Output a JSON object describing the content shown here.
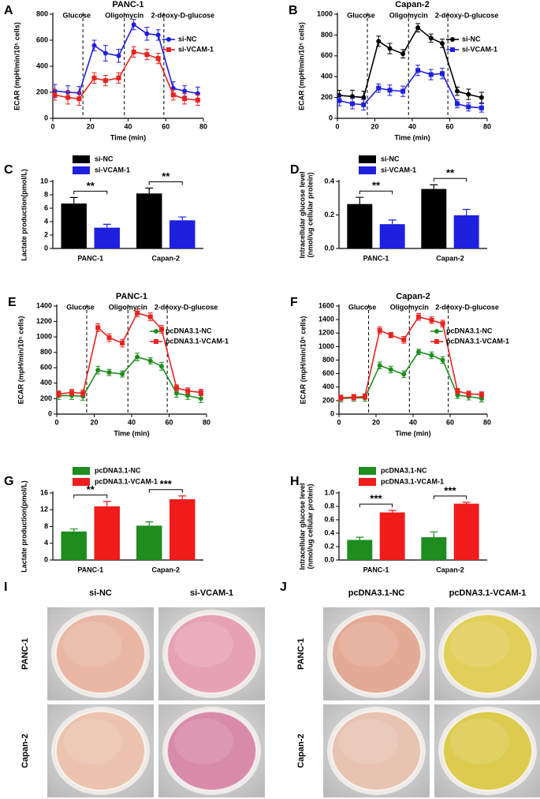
{
  "chart_data": [
    {
      "type": "line",
      "panel_label": "A",
      "title": "PANC-1",
      "xlabel": "Time (min)",
      "ylabel": "ECAR (mpH/min/10⁵ cells)",
      "markers": [
        {
          "x": 16,
          "label": "Glucose"
        },
        {
          "x": 38,
          "label": "Oligomycin"
        },
        {
          "x": 59,
          "label": "2-deoxy-D-glucose"
        }
      ],
      "x": [
        1,
        8,
        14,
        22,
        28,
        35,
        43,
        50,
        56,
        64,
        70,
        77
      ],
      "series": [
        {
          "name": "si-NC",
          "color": "#1f1fe0",
          "values": [
            210,
            200,
            195,
            560,
            500,
            480,
            720,
            650,
            640,
            230,
            210,
            190
          ],
          "errors": [
            50,
            50,
            50,
            40,
            60,
            50,
            40,
            50,
            40,
            50,
            40,
            50
          ]
        },
        {
          "name": "si-VCAM-1",
          "color": "#e8231f",
          "values": [
            180,
            160,
            150,
            310,
            290,
            310,
            510,
            490,
            460,
            180,
            150,
            140
          ],
          "errors": [
            40,
            50,
            50,
            40,
            40,
            40,
            40,
            40,
            40,
            40,
            40,
            40
          ]
        }
      ],
      "xlim": [
        0,
        80
      ],
      "xticks": [
        0,
        20,
        40,
        60,
        80
      ],
      "ylim": [
        0,
        800
      ],
      "yticks": [
        0,
        200,
        400,
        600,
        800
      ]
    },
    {
      "type": "line",
      "panel_label": "B",
      "title": "Capan-2",
      "xlabel": "Time (min)",
      "ylabel": "ECAR (mpH/min/10⁵ cells)",
      "markers": [
        {
          "x": 16,
          "label": "Glucose"
        },
        {
          "x": 38,
          "label": "Oligomycin"
        },
        {
          "x": 59,
          "label": "2-deoxy-D-glucose"
        }
      ],
      "x": [
        1,
        8,
        14,
        22,
        28,
        35,
        43,
        50,
        56,
        64,
        70,
        77
      ],
      "series": [
        {
          "name": "si-NC",
          "color": "#000000",
          "values": [
            220,
            210,
            200,
            740,
            670,
            620,
            870,
            770,
            720,
            260,
            230,
            200
          ],
          "errors": [
            50,
            60,
            60,
            50,
            50,
            40,
            40,
            40,
            40,
            40,
            50,
            50
          ]
        },
        {
          "name": "si-VCAM-1",
          "color": "#1f1fe0",
          "values": [
            170,
            140,
            130,
            290,
            270,
            260,
            460,
            420,
            430,
            140,
            110,
            100
          ],
          "errors": [
            50,
            50,
            50,
            40,
            50,
            50,
            50,
            50,
            50,
            40,
            40,
            40
          ]
        }
      ],
      "xlim": [
        0,
        80
      ],
      "xticks": [
        0,
        20,
        40,
        60,
        80
      ],
      "ylim": [
        0,
        1000
      ],
      "yticks": [
        0,
        200,
        400,
        600,
        800,
        1000
      ]
    },
    {
      "type": "bar",
      "panel_label": "C",
      "ylabel": "Lactate production(pmol/L)",
      "categories": [
        "PANC-1",
        "Capan-2"
      ],
      "series": [
        {
          "name": "si-NC",
          "color": "#000000",
          "values": [
            6.7,
            8.2
          ],
          "errors": [
            0.9,
            0.8
          ]
        },
        {
          "name": "si-VCAM-1",
          "color": "#1f1fe0",
          "values": [
            3.1,
            4.2
          ],
          "errors": [
            0.5,
            0.5
          ]
        }
      ],
      "significance": [
        "**",
        "**"
      ],
      "ylim": [
        0,
        10
      ],
      "yticks": [
        0,
        2,
        4,
        6,
        8,
        10
      ]
    },
    {
      "type": "bar",
      "panel_label": "D",
      "ylabel": [
        "Intracellular glucose level",
        "(nmol/ug cellular protein)"
      ],
      "categories": [
        "PANC-1",
        "Capan-2"
      ],
      "series": [
        {
          "name": "si-NC",
          "color": "#000000",
          "values": [
            0.265,
            0.355
          ],
          "errors": [
            0.04,
            0.025
          ]
        },
        {
          "name": "si-VCAM-1",
          "color": "#1f1fe0",
          "values": [
            0.145,
            0.198
          ],
          "errors": [
            0.025,
            0.035
          ]
        }
      ],
      "significance": [
        "**",
        "**"
      ],
      "ylim": [
        0,
        0.4
      ],
      "yticks": [
        {
          "value": 0,
          "label": "0.0"
        },
        0.2,
        0.4
      ]
    },
    {
      "type": "line",
      "panel_label": "E",
      "title": "PANC-1",
      "xlabel": "Time (min)",
      "ylabel": "ECAR (mpH/min/10⁵ cells)",
      "markers": [
        {
          "x": 16,
          "label": "Glucose"
        },
        {
          "x": 38,
          "label": "Oligomycin"
        },
        {
          "x": 59,
          "label": "2-deoxy-D-glucose"
        }
      ],
      "x": [
        1,
        8,
        14,
        22,
        28,
        35,
        43,
        50,
        56,
        64,
        70,
        77
      ],
      "series": [
        {
          "name": "pcDNA3.1-NC",
          "color": "#1e8c1e",
          "values": [
            240,
            240,
            230,
            570,
            540,
            520,
            740,
            690,
            620,
            270,
            240,
            200
          ],
          "errors": [
            50,
            50,
            50,
            50,
            40,
            40,
            50,
            40,
            50,
            50,
            50,
            50
          ]
        },
        {
          "name": "pcDNA3.1-VCAM-1",
          "color": "#e8231f",
          "values": [
            260,
            280,
            270,
            1120,
            990,
            920,
            1310,
            1260,
            1100,
            340,
            300,
            280
          ],
          "errors": [
            40,
            40,
            40,
            50,
            50,
            50,
            50,
            50,
            50,
            40,
            40,
            40
          ]
        }
      ],
      "xlim": [
        0,
        80
      ],
      "xticks": [
        0,
        20,
        40,
        60,
        80
      ],
      "ylim": [
        0,
        1400
      ],
      "yticks": [
        0,
        200,
        400,
        600,
        800,
        1000,
        1200,
        1400
      ]
    },
    {
      "type": "line",
      "panel_label": "F",
      "title": "Capan-2",
      "xlabel": "Time (min)",
      "ylabel": "ECAR (mpH/min/10⁵ cells)",
      "markers": [
        {
          "x": 16,
          "label": "Glucose"
        },
        {
          "x": 38,
          "label": "Oligomycin"
        },
        {
          "x": 59,
          "label": "2-deoxy-D-glucose"
        }
      ],
      "x": [
        1,
        8,
        14,
        22,
        28,
        35,
        43,
        50,
        56,
        64,
        70,
        77
      ],
      "series": [
        {
          "name": "pcDNA3.1-NC",
          "color": "#1e8c1e",
          "values": [
            230,
            240,
            240,
            720,
            660,
            590,
            920,
            870,
            800,
            280,
            260,
            230
          ],
          "errors": [
            50,
            50,
            50,
            50,
            50,
            50,
            40,
            50,
            50,
            50,
            50,
            50
          ]
        },
        {
          "name": "pcDNA3.1-VCAM-1",
          "color": "#e8231f",
          "values": [
            240,
            250,
            260,
            1240,
            1170,
            1100,
            1440,
            1390,
            1340,
            340,
            300,
            290
          ],
          "errors": [
            40,
            40,
            40,
            50,
            40,
            50,
            50,
            50,
            50,
            40,
            40,
            40
          ]
        }
      ],
      "xlim": [
        0,
        80
      ],
      "xticks": [
        0,
        20,
        40,
        60,
        80
      ],
      "ylim": [
        0,
        1600
      ],
      "yticks": [
        0,
        200,
        400,
        600,
        800,
        1000,
        1200,
        1400,
        1600
      ]
    },
    {
      "type": "bar",
      "panel_label": "G",
      "ylabel": "Lactate production(pmol/L)",
      "categories": [
        "PANC-1",
        "Capan-2"
      ],
      "series": [
        {
          "name": "pcDNA3.1-NC",
          "color": "#1e8c1e",
          "values": [
            6.8,
            8.2
          ],
          "errors": [
            0.6,
            0.9
          ]
        },
        {
          "name": "pcDNA3.1-VCAM-1",
          "color": "#f01c1c",
          "values": [
            12.8,
            14.5
          ],
          "errors": [
            1.2,
            0.8
          ]
        }
      ],
      "significance": [
        "**",
        "***"
      ],
      "ylim": [
        0,
        16
      ],
      "yticks": [
        0,
        4,
        8,
        12,
        16
      ]
    },
    {
      "type": "bar",
      "panel_label": "H",
      "ylabel": [
        "Intracellular glucose level",
        "(nmol/ug cellular protein)"
      ],
      "categories": [
        "PANC-1",
        "Capan-2"
      ],
      "series": [
        {
          "name": "pcDNA3.1-NC",
          "color": "#1e8c1e",
          "values": [
            0.3,
            0.34
          ],
          "errors": [
            0.04,
            0.08
          ]
        },
        {
          "name": "pcDNA3.1-VCAM-1",
          "color": "#f01c1c",
          "values": [
            0.71,
            0.84
          ],
          "errors": [
            0.03,
            0.02
          ]
        }
      ],
      "significance": [
        "***",
        "***"
      ],
      "ylim": [
        0,
        1
      ],
      "yticks": [
        {
          "value": 0,
          "label": "0.0"
        },
        0.2,
        0.4,
        0.6,
        0.8,
        {
          "value": 1,
          "label": "1.0"
        }
      ]
    }
  ],
  "photos": [
    {
      "panel_label": "I",
      "columns": [
        "si-NC",
        "si-VCAM-1"
      ],
      "rows": [
        "PANC-1",
        "Capan-2"
      ]
    },
    {
      "panel_label": "J",
      "columns": [
        "pcDNA3.1-NC",
        "pcDNA3.1-VCAM-1"
      ],
      "rows": [
        "PANC-1",
        "Capan-2"
      ]
    }
  ]
}
